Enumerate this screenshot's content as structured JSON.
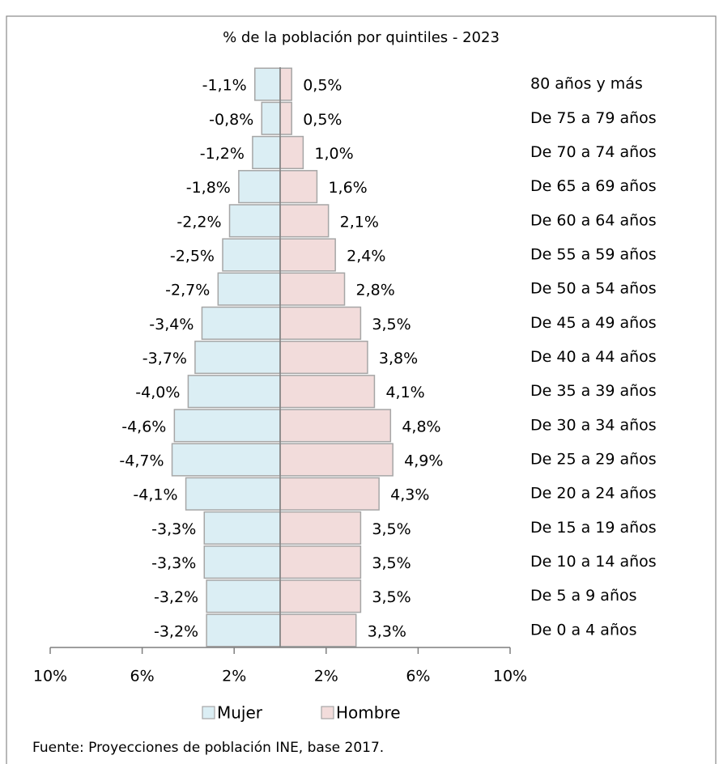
{
  "chart_data": {
    "type": "bar",
    "orientation": "horizontal",
    "stacked": false,
    "subtitle": "% de la población por quintiles - 2023",
    "categories": [
      "80 años y más",
      "De 75 a 79 años",
      "De 70 a 74 años",
      "De 65 a 69 años",
      "De 60 a 64 años",
      "De 55 a 59 años",
      "De 50 a 54 años",
      "De 45 a 49 años",
      "De 40 a 44 años",
      "De 35 a 39 años",
      "De 30 a 34 años",
      "De 25 a 29 años",
      "De 20 a 24 años",
      "De 15 a 19 años",
      "De 10 a 14 años",
      "De 5 a 9 años",
      "De 0 a 4 años"
    ],
    "series": [
      {
        "name": "Mujer",
        "color": "#dbeef4",
        "values": [
          -1.1,
          -0.8,
          -1.2,
          -1.8,
          -2.2,
          -2.5,
          -2.7,
          -3.4,
          -3.7,
          -4.0,
          -4.6,
          -4.7,
          -4.1,
          -3.3,
          -3.3,
          -3.2,
          -3.2
        ],
        "value_labels": [
          "-1,1%",
          "-0,8%",
          "-1,2%",
          "-1,8%",
          "-2,2%",
          "-2,5%",
          "-2,7%",
          "-3,4%",
          "-3,7%",
          "-4,0%",
          "-4,6%",
          "-4,7%",
          "-4,1%",
          "-3,3%",
          "-3,3%",
          "-3,2%",
          "-3,2%"
        ]
      },
      {
        "name": "Hombre",
        "color": "#f2dcdb",
        "values": [
          0.5,
          0.5,
          1.0,
          1.6,
          2.1,
          2.4,
          2.8,
          3.5,
          3.8,
          4.1,
          4.8,
          4.9,
          4.3,
          3.5,
          3.5,
          3.5,
          3.3
        ],
        "value_labels": [
          "0,5%",
          "0,5%",
          "1,0%",
          "1,6%",
          "2,1%",
          "2,4%",
          "2,8%",
          "3,5%",
          "3,8%",
          "4,1%",
          "4,8%",
          "4,9%",
          "4,3%",
          "3,5%",
          "3,5%",
          "3,5%",
          "3,3%"
        ]
      }
    ],
    "xlim": [
      -10,
      10
    ],
    "xticks": [
      {
        "value": -10,
        "label": "10%"
      },
      {
        "value": -6,
        "label": "6%"
      },
      {
        "value": -2,
        "label": "2%"
      },
      {
        "value": 2,
        "label": "2%"
      },
      {
        "value": 6,
        "label": "6%"
      },
      {
        "value": 10,
        "label": "10%"
      }
    ],
    "grid": false,
    "legend": "bottom",
    "source": "Fuente: Proyecciones de población INE, base 2017."
  }
}
